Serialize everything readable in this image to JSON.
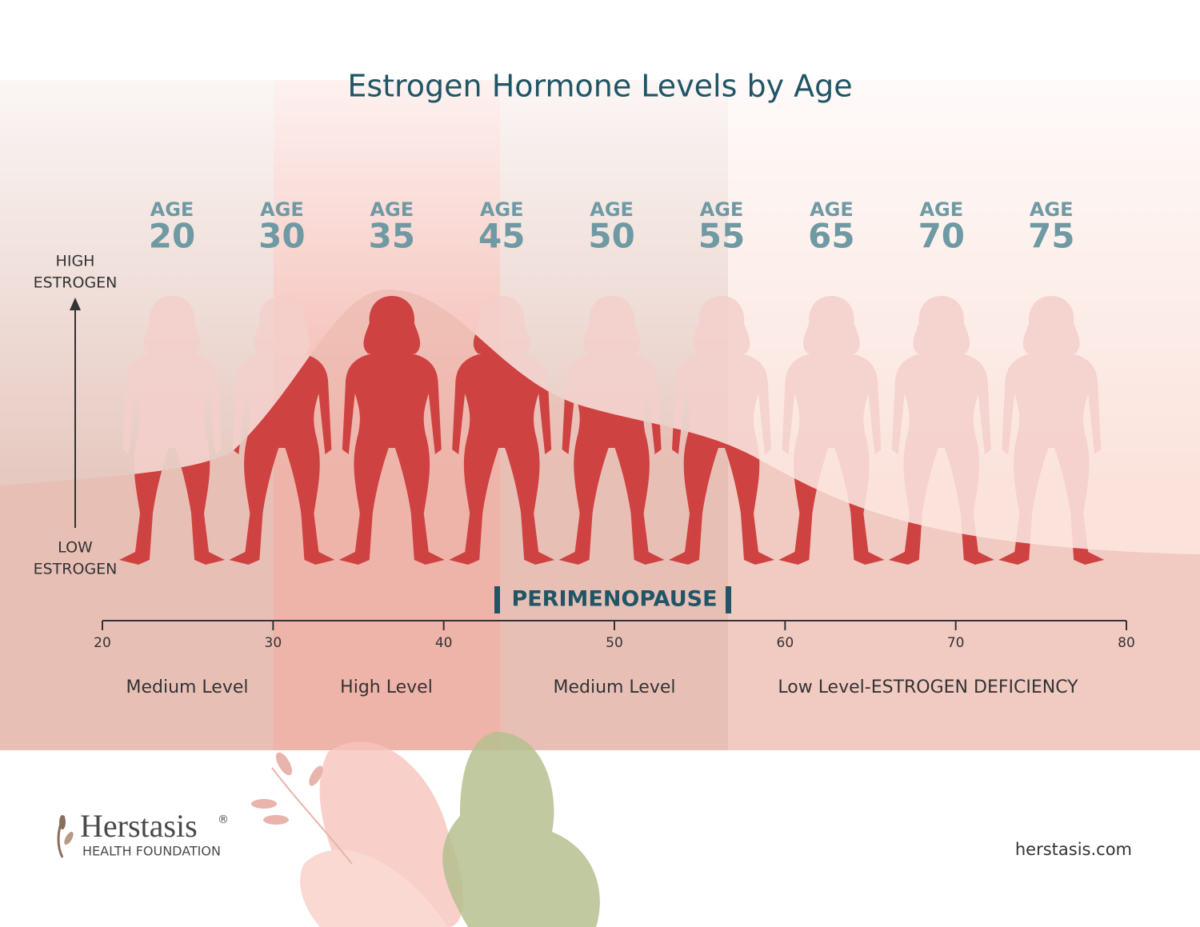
{
  "title": "Estrogen Hormone Levels by Age",
  "y_axis": {
    "high": [
      "HIGH",
      "ESTROGEN"
    ],
    "low": [
      "LOW",
      "ESTROGEN"
    ]
  },
  "figures": [
    {
      "label": "AGE",
      "age": 20
    },
    {
      "label": "AGE",
      "age": 30
    },
    {
      "label": "AGE",
      "age": 35
    },
    {
      "label": "AGE",
      "age": 45
    },
    {
      "label": "AGE",
      "age": 50
    },
    {
      "label": "AGE",
      "age": 55
    },
    {
      "label": "AGE",
      "age": 65
    },
    {
      "label": "AGE",
      "age": 70
    },
    {
      "label": "AGE",
      "age": 75
    }
  ],
  "perimenopause": "PERIMENOPAUSE",
  "axis_ticks": [
    20,
    30,
    40,
    50,
    60,
    70,
    80
  ],
  "phases": [
    "Medium Level",
    "High Level",
    "Medium Level",
    "Low Level-ESTROGEN DEFICIENCY"
  ],
  "logo": {
    "name": "Herstasis",
    "mark": "®",
    "subtitle": "HEALTH FOUNDATION"
  },
  "url": "herstasis.com"
}
